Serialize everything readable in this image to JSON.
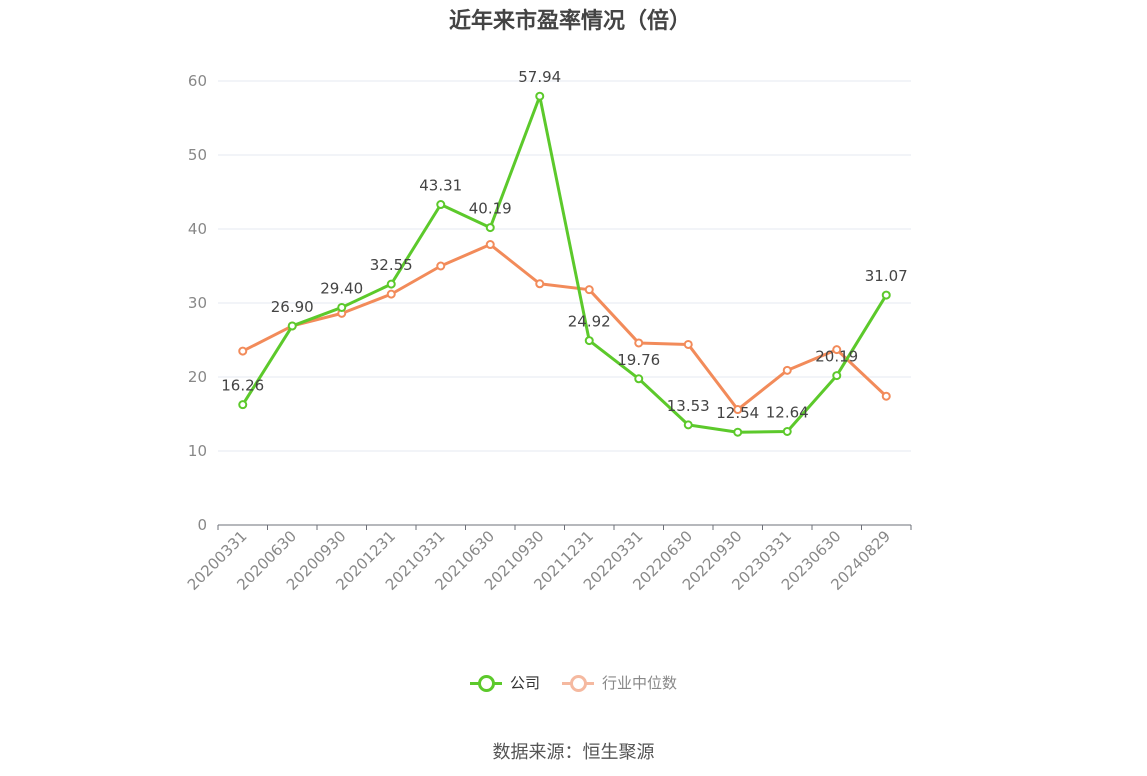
{
  "title": "近年来市盈率情况（倍）",
  "source": "数据来源：恒生聚源",
  "legend": {
    "company": "公司",
    "industry": "行业中位数"
  },
  "colors": {
    "company": "#5cc92b",
    "industry": "#f28b5a",
    "industry_legend": "#f5b9a0",
    "grid": "#e6e8f0",
    "axis": "#6e7079",
    "tick_label": "#888888",
    "data_label": "#444444"
  },
  "chart_data": {
    "type": "line",
    "title": "近年来市盈率情况（倍）",
    "categories": [
      "20200331",
      "20200630",
      "20200930",
      "20201231",
      "20210331",
      "20210630",
      "20210930",
      "20211231",
      "20220331",
      "20220630",
      "20220930",
      "20230331",
      "20230630",
      "20240829"
    ],
    "series": [
      {
        "name": "公司",
        "values": [
          16.26,
          26.9,
          29.4,
          32.55,
          43.31,
          40.19,
          57.94,
          24.92,
          19.76,
          13.53,
          12.54,
          12.64,
          20.19,
          31.07
        ],
        "data_labels": [
          "16.26",
          "26.90",
          "29.40",
          "32.55",
          "43.31",
          "40.19",
          "57.94",
          "24.92",
          "19.76",
          "13.53",
          "12.54",
          "12.64",
          "20.19",
          "31.07"
        ]
      },
      {
        "name": "行业中位数",
        "values": [
          23.5,
          26.9,
          28.6,
          31.2,
          35.0,
          37.9,
          32.6,
          31.8,
          24.6,
          24.4,
          15.6,
          20.9,
          23.7,
          17.4
        ]
      }
    ],
    "ylim": [
      0,
      60
    ],
    "yticks": [
      0,
      10,
      20,
      30,
      40,
      50,
      60
    ],
    "grid": true,
    "legend_position": "bottom"
  }
}
